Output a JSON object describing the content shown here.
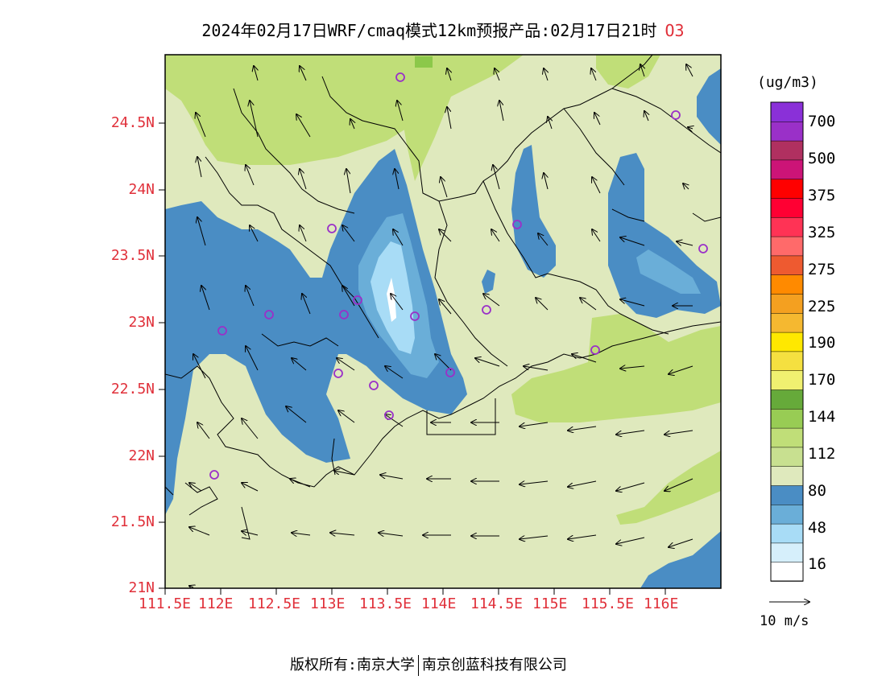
{
  "title": {
    "main": "2024年02月17日WRF/cmaq模式12km预报产品:02月17日21时",
    "pollutant": "O3"
  },
  "axes": {
    "y_ticks": [
      "24.5N",
      "24N",
      "23.5N",
      "23N",
      "22.5N",
      "22N",
      "21.5N",
      "21N"
    ],
    "x_ticks": [
      "111.5E",
      "112E",
      "112.5E",
      "113E",
      "113.5E",
      "114E",
      "114.5E",
      "115E",
      "115.5E",
      "116E"
    ]
  },
  "colorbar": {
    "unit": "(ug/m3)",
    "labels": [
      "700",
      "500",
      "375",
      "325",
      "275",
      "225",
      "190",
      "170",
      "144",
      "112",
      "80",
      "48",
      "16"
    ],
    "colors_bottom_to_top": [
      "#ffffff",
      "#d6effb",
      "#a8dcf6",
      "#6aaed8",
      "#4a8dc4",
      "#dfe9bd",
      "#c8e090",
      "#c0de78",
      "#98cc54",
      "#66aa3a",
      "#f0f070",
      "#f5e040",
      "#ffe800",
      "#f5b830",
      "#f4a020",
      "#ff8a00",
      "#ee5a30",
      "#ff6a6a",
      "#ff3355",
      "#ff0033",
      "#ff0000",
      "#cc1477",
      "#b03060",
      "#9a30c8",
      "#8a30d8"
    ]
  },
  "colors": {
    "background_field": "#dfe9bd",
    "green": "#c0de78",
    "blue": "#4a8dc4",
    "light_blue": "#6aaed8",
    "pale_blue": "#a8dcf6",
    "station_marker": "#9a30c8",
    "axis_label": "#e0303a"
  },
  "wind_vector_reference": "10 m/s",
  "footer": {
    "left": "版权所有:南京大学",
    "right": "南京创蓝科技有限公司"
  }
}
